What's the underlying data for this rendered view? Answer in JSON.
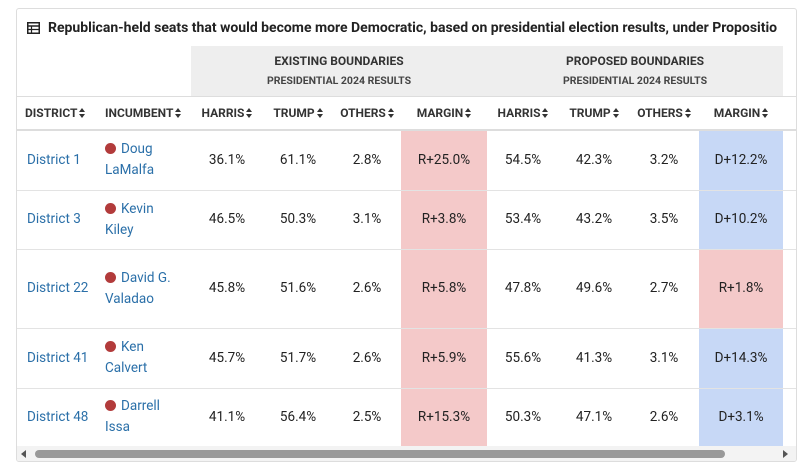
{
  "title": "Republican-held seats that would become more Democratic, based on presidential election results, under Propositio",
  "groups": [
    {
      "name": "EXISTING BOUNDARIES",
      "sub": "PRESIDENTIAL 2024 RESULTS"
    },
    {
      "name": "PROPOSED BOUNDARIES",
      "sub": "PRESIDENTIAL 2024 RESULTS"
    }
  ],
  "columns": [
    "DISTRICT",
    "INCUMBENT",
    "HARRIS",
    "TRUMP",
    "OTHERS",
    "MARGIN",
    "HARRIS",
    "TRUMP",
    "OTHERS",
    "MARGIN"
  ],
  "colors": {
    "R": "#f4c9c9",
    "D": "#c7d8f6",
    "dot": "#b23b3b"
  },
  "rows": [
    {
      "district": "District 1",
      "incumbent": "Doug LaMalfa",
      "cells": [
        "36.1%",
        "61.1%",
        "2.8%",
        "R+25.0%",
        "54.5%",
        "42.3%",
        "3.2%",
        "D+12.2%"
      ],
      "margin_party": [
        "R",
        "D"
      ]
    },
    {
      "district": "District 3",
      "incumbent": "Kevin Kiley",
      "cells": [
        "46.5%",
        "50.3%",
        "3.1%",
        "R+3.8%",
        "53.4%",
        "43.2%",
        "3.5%",
        "D+10.2%"
      ],
      "margin_party": [
        "R",
        "D"
      ]
    },
    {
      "district": "District 22",
      "incumbent": "David G. Valadao",
      "cells": [
        "45.8%",
        "51.6%",
        "2.6%",
        "R+5.8%",
        "47.8%",
        "49.6%",
        "2.7%",
        "R+1.8%"
      ],
      "margin_party": [
        "R",
        "R"
      ]
    },
    {
      "district": "District 41",
      "incumbent": "Ken Calvert",
      "cells": [
        "45.7%",
        "51.7%",
        "2.6%",
        "R+5.9%",
        "55.6%",
        "41.3%",
        "3.1%",
        "D+14.3%"
      ],
      "margin_party": [
        "R",
        "D"
      ]
    },
    {
      "district": "District 48",
      "incumbent": "Darrell Issa",
      "cells": [
        "41.1%",
        "56.4%",
        "2.5%",
        "R+15.3%",
        "50.3%",
        "47.1%",
        "2.6%",
        "D+3.1%"
      ],
      "margin_party": [
        "R",
        "D"
      ]
    }
  ]
}
